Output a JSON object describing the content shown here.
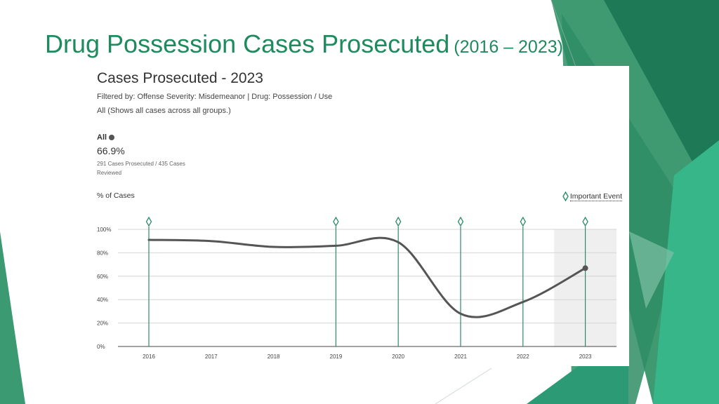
{
  "slide": {
    "title": "Drug Possession Cases Prosecuted",
    "title_years": "(2016 – 2023)",
    "accent_color": "#1f8a5e"
  },
  "panel": {
    "title": "Cases Prosecuted - 2023",
    "filter": "Filtered by: Offense Severity: Misdemeanor  |  Drug: Possession / Use",
    "group_desc": "All (Shows all cases across all groups.)",
    "group_label": "All",
    "percent": "66.9%",
    "detail": "291 Cases Prosecuted / 435 Cases Reviewed",
    "y_axis_label": "% of Cases",
    "legend_label": "Important Event"
  },
  "chart_data": {
    "type": "line",
    "title": "Cases Prosecuted - 2023",
    "ylabel": "% of Cases",
    "x": [
      "2016",
      "2017",
      "2018",
      "2019",
      "2020",
      "2021",
      "2022",
      "2023"
    ],
    "series": [
      {
        "name": "All",
        "values": [
          91,
          90,
          85,
          86,
          89,
          28,
          38,
          66.9
        ],
        "color": "#555555"
      }
    ],
    "ylim": [
      0,
      100
    ],
    "yticks": [
      "0%",
      "20%",
      "40%",
      "60%",
      "80%",
      "100%"
    ],
    "ytick_values": [
      0,
      20,
      40,
      60,
      80,
      100
    ],
    "event_years": [
      "2016",
      "2019",
      "2020",
      "2021",
      "2022",
      "2023"
    ],
    "highlight_year": "2023",
    "event_color": "#2e8b6a",
    "grid": true
  }
}
